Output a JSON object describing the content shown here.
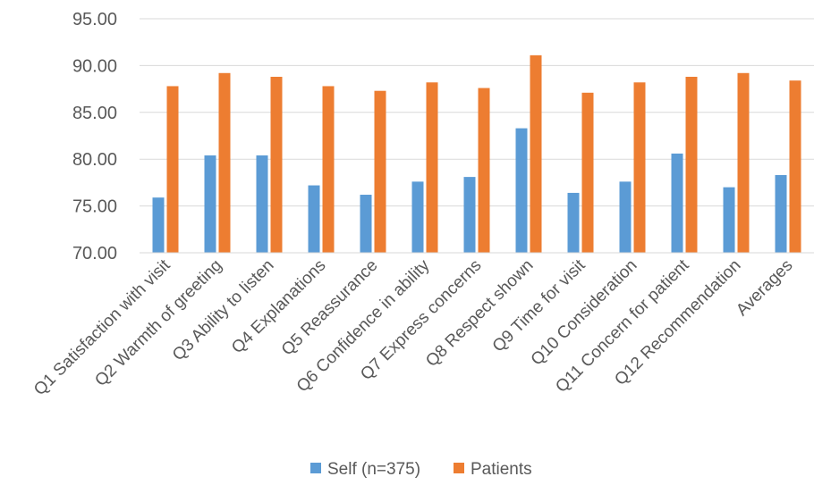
{
  "chart_data": {
    "type": "bar",
    "categories": [
      "Q1 Satisfaction with visit",
      "Q2 Warmth of greeting",
      "Q3 Ability to listen",
      "Q4 Explanations",
      "Q5 Reassurance",
      "Q6 Confidence in ability",
      "Q7 Express concerns",
      "Q8 Respect shown",
      "Q9 Time for visit",
      "Q10 Consideration",
      "Q11 Concern for patient",
      "Q12 Recommendation",
      "Averages"
    ],
    "series": [
      {
        "name": "Self (n=375)",
        "color": "#5B9BD5",
        "values": [
          75.9,
          80.4,
          80.4,
          77.2,
          76.2,
          77.6,
          78.1,
          83.3,
          76.4,
          77.6,
          80.6,
          77.0,
          78.3
        ]
      },
      {
        "name": "Patients",
        "color": "#ED7D31",
        "values": [
          87.8,
          89.2,
          88.8,
          87.8,
          87.3,
          88.2,
          87.6,
          91.1,
          87.1,
          88.2,
          88.8,
          89.2,
          88.4
        ]
      }
    ],
    "yticks": [
      "70.00",
      "75.00",
      "80.00",
      "85.00",
      "90.00",
      "95.00"
    ],
    "ylim": [
      70,
      95
    ],
    "grid": true,
    "legend": "bottom",
    "title": "",
    "xlabel": "",
    "ylabel": ""
  }
}
